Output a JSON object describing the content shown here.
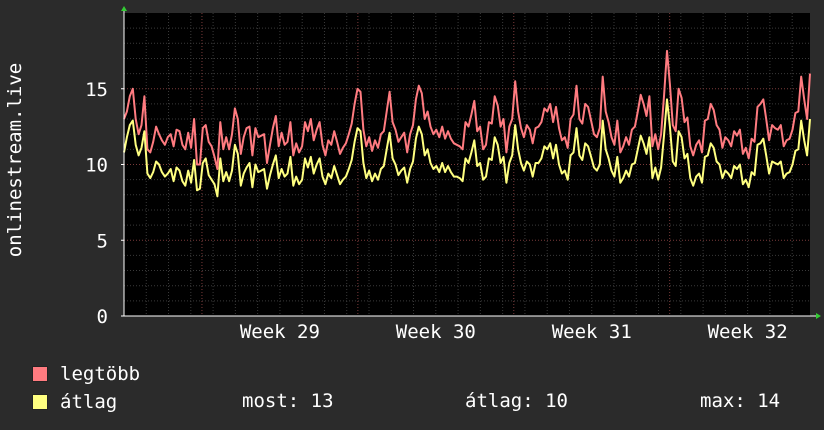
{
  "chart_data": {
    "type": "line",
    "ylabel": "onlinestream.live",
    "xticks": [
      "Week 29",
      "Week 30",
      "Week 31",
      "Week 32"
    ],
    "yticks": [
      "0",
      "5",
      "10",
      "15"
    ],
    "ylim": [
      0,
      20
    ],
    "xlim": [
      0,
      4.4
    ],
    "grid": true,
    "series": [
      {
        "name": "legtöbb",
        "color": "#ff7b80",
        "values": [
          13,
          13.5,
          14.5,
          15,
          13,
          12,
          12.6,
          14.5,
          11,
          10.8,
          11.5,
          12.5,
          12,
          11.6,
          11.3,
          11.8,
          12,
          11.2,
          12.3,
          12.2,
          11.3,
          11,
          12.1,
          11.1,
          13,
          10,
          10,
          12.4,
          12.6,
          11.5,
          11.2,
          10.5,
          9.7,
          12.8,
          11,
          11.8,
          11,
          12,
          13.7,
          13,
          10.7,
          11.8,
          12.4,
          12.5,
          10.6,
          12.4,
          11.8,
          11.9,
          12,
          10.1,
          11.3,
          12.4,
          13.2,
          11.2,
          12.1,
          11.3,
          11.5,
          12.8,
          10.6,
          11.4,
          10.8,
          11.2,
          12.8,
          12.2,
          13,
          11.6,
          12.3,
          12.8,
          11.3,
          10.6,
          11.6,
          11.3,
          12.2,
          11.5,
          10.7,
          11.1,
          11.4,
          12,
          12.7,
          14,
          15,
          14.8,
          12.3,
          11.2,
          11.8,
          10.9,
          11.6,
          11.1,
          12,
          12.2,
          13.5,
          14.8,
          12.8,
          12.3,
          11.5,
          11.8,
          12.1,
          10.8,
          12,
          12.6,
          14.3,
          15.2,
          14.7,
          13,
          13.5,
          12.5,
          12,
          12.3,
          11.8,
          12.5,
          11.7,
          12.2,
          11.7,
          11.4,
          11.3,
          11.2,
          11,
          12.8,
          12.5,
          13.3,
          14.2,
          12.2,
          12.5,
          11,
          11.3,
          12.8,
          12.7,
          14.5,
          13.9,
          12.5,
          13,
          10.8,
          12.5,
          13,
          15.5,
          13.5,
          12.4,
          11.8,
          12.6,
          12.3,
          11.4,
          12.4,
          12.5,
          12.8,
          13.7,
          13.5,
          14,
          12.8,
          13.8,
          12.4,
          11.6,
          11.8,
          11.1,
          13,
          13.3,
          15.2,
          13,
          12.7,
          14,
          13.8,
          12.9,
          12,
          11.8,
          12.4,
          15.8,
          13.5,
          12.8,
          11.8,
          11.3,
          12.9,
          10.8,
          11.2,
          11.8,
          11.3,
          12.3,
          12.5,
          13.5,
          14.6,
          14,
          13.2,
          14.5,
          11.2,
          12,
          11,
          12,
          14.5,
          17.5,
          15.3,
          12.6,
          12.2,
          15,
          14.4,
          12.8,
          13.1,
          11.2,
          10.6,
          11.3,
          11.6,
          10.8,
          12.9,
          13,
          14,
          13.6,
          12.6,
          12.3,
          11.1,
          11.8,
          11.6,
          11.2,
          12.2,
          11.9,
          12.3,
          10.7,
          11.1,
          10.4,
          11.7,
          11.5,
          13.8,
          14,
          14.3,
          13,
          11.6,
          12.6,
          12.4,
          12.3,
          12.6,
          11.2,
          11.6,
          11.7,
          12.3,
          13.4,
          13.5,
          15.8,
          14.3,
          13,
          16
        ]
      },
      {
        "name": "átlag",
        "color": "#ffff80",
        "values": [
          10.8,
          11.8,
          12.6,
          12.9,
          11.3,
          10.6,
          11.1,
          12.2,
          9.4,
          9.1,
          9.5,
          10.2,
          10,
          9.5,
          9.2,
          9.4,
          9.7,
          8.9,
          9.8,
          9.6,
          8.9,
          8.6,
          9.6,
          8.8,
          10.3,
          8.3,
          8.4,
          10.1,
          10.4,
          9.3,
          9,
          8.7,
          7.9,
          10.4,
          8.9,
          9.5,
          8.9,
          9.6,
          11.3,
          10.7,
          8.6,
          9.4,
          9.8,
          10.1,
          8.5,
          10,
          9.5,
          9.6,
          9.7,
          8.4,
          9.3,
          10,
          10.6,
          9.1,
          9.7,
          9.2,
          9.4,
          10.5,
          8.6,
          9.2,
          8.7,
          9,
          10.4,
          9.8,
          10.5,
          9.4,
          10,
          10.4,
          9.2,
          8.7,
          9.4,
          9.1,
          9.9,
          9.3,
          8.7,
          9,
          9.2,
          9.7,
          10.3,
          11.5,
          12.4,
          12.2,
          10.1,
          9.1,
          9.6,
          8.9,
          9.4,
          9,
          9.7,
          9.9,
          11,
          12.1,
          10.4,
          10,
          9.3,
          9.6,
          9.8,
          8.8,
          9.7,
          10.2,
          11.7,
          12.5,
          12,
          10.6,
          11,
          10.1,
          9.7,
          9.9,
          9.5,
          10.1,
          9.5,
          9.9,
          9.5,
          9.2,
          9.2,
          9.1,
          8.9,
          10.4,
          10.1,
          10.8,
          11.6,
          9.9,
          10.1,
          9,
          9.2,
          10.4,
          10.3,
          11.8,
          11.3,
          10.1,
          10.5,
          8.8,
          10.1,
          10.6,
          12.6,
          11,
          10.1,
          9.6,
          10.2,
          10,
          9.2,
          10.1,
          10.1,
          10.4,
          11.2,
          11,
          11.4,
          10.4,
          11.3,
          10,
          9.4,
          9.6,
          9,
          10.6,
          10.8,
          12.4,
          10.6,
          10.3,
          11.4,
          11.2,
          10.5,
          9.8,
          9.6,
          10,
          12.9,
          11,
          10.4,
          9.6,
          9.2,
          10.5,
          8.8,
          9.1,
          9.6,
          9.2,
          10,
          10.1,
          11,
          11.9,
          11.4,
          10.7,
          11.8,
          9.1,
          9.8,
          9,
          9.8,
          11.9,
          14.3,
          12.5,
          10.2,
          9.9,
          12.2,
          11.8,
          10.4,
          10.7,
          9.1,
          8.6,
          9.2,
          9.4,
          8.8,
          10.5,
          10.6,
          11.4,
          11.1,
          10.2,
          10,
          9.1,
          9.6,
          9.4,
          9.1,
          9.9,
          9.7,
          10,
          8.7,
          9,
          8.5,
          9.5,
          9.3,
          11.3,
          11.4,
          11.7,
          10.6,
          9.4,
          10.2,
          10.1,
          10,
          10.2,
          9.1,
          9.4,
          9.5,
          10,
          10.9,
          11,
          12.9,
          11.6,
          10.6,
          13
        ]
      }
    ]
  },
  "legend": {
    "items": [
      {
        "label": "legtöbb",
        "color": "#ff7b80"
      },
      {
        "label": "átlag",
        "color": "#ffff80"
      }
    ]
  },
  "stats": {
    "now": "most: 13",
    "avg": "átlag: 10",
    "max": "max: 14"
  }
}
